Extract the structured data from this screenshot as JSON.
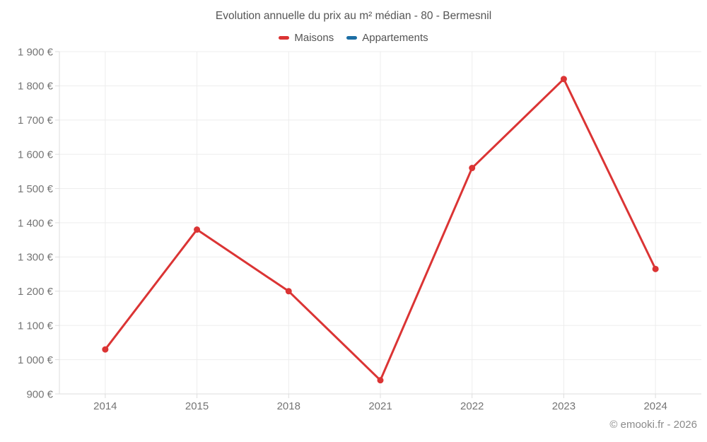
{
  "title": "Evolution annuelle du prix au m² médian - 80 - Bermesnil",
  "footer": "© emooki.fr - 2026",
  "colors": {
    "maisons": "#db3434",
    "appartements": "#1c6ea4",
    "title_text": "#555555",
    "tick_text": "#757575",
    "grid": "#ededed",
    "axis": "#dddddd",
    "footer_text": "#8a8a8a",
    "background": "#ffffff"
  },
  "legend": {
    "items": [
      {
        "label": "Maisons",
        "color_key": "maisons"
      },
      {
        "label": "Appartements",
        "color_key": "appartements"
      }
    ]
  },
  "chart_data": {
    "type": "line",
    "title": "Evolution annuelle du prix au m² médian - 80 - Bermesnil",
    "categories": [
      "2014",
      "2015",
      "2018",
      "2021",
      "2022",
      "2023",
      "2024"
    ],
    "series": [
      {
        "name": "Maisons",
        "color_key": "maisons",
        "values": [
          1030,
          1380,
          1200,
          940,
          1560,
          1820,
          1265
        ]
      },
      {
        "name": "Appartements",
        "color_key": "appartements",
        "values": []
      }
    ],
    "xlabel": "",
    "ylabel": "",
    "ylim": [
      900,
      1900
    ],
    "ytick_step": 100,
    "yticks": [
      {
        "value": 900,
        "label": "900 €"
      },
      {
        "value": 1000,
        "label": "1 000 €"
      },
      {
        "value": 1100,
        "label": "1 100 €"
      },
      {
        "value": 1200,
        "label": "1 200 €"
      },
      {
        "value": 1300,
        "label": "1 300 €"
      },
      {
        "value": 1400,
        "label": "1 400 €"
      },
      {
        "value": 1500,
        "label": "1 500 €"
      },
      {
        "value": 1600,
        "label": "1 600 €"
      },
      {
        "value": 1700,
        "label": "1 700 €"
      },
      {
        "value": 1800,
        "label": "1 800 €"
      },
      {
        "value": 1900,
        "label": "1 900 €"
      }
    ],
    "grid": true,
    "legend_position": "top",
    "marker": "circle"
  }
}
